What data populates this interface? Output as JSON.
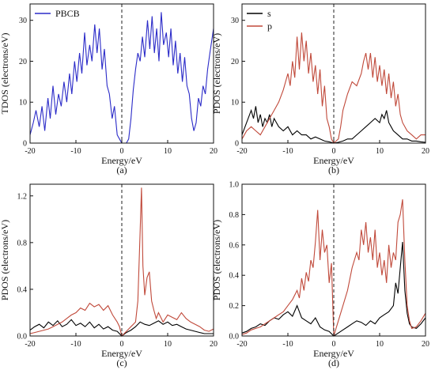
{
  "chart_data": [
    {
      "type": "line",
      "panel_label": "(a)",
      "xlabel": "Energy/eV",
      "ylabel": "TDOS (electrons/eV)",
      "xlim": [
        -20,
        20
      ],
      "ylim": [
        0,
        34
      ],
      "xticks": [
        -20,
        -10,
        0,
        10,
        20
      ],
      "yticks": [
        0,
        10,
        20,
        30
      ],
      "ytick_labels": [
        "0",
        "10",
        "20",
        "30"
      ],
      "legend": "top-left",
      "vline_x": 0,
      "series": [
        {
          "name": "PBCB",
          "color": "#2b2bc8",
          "x": [
            -20,
            -19.3,
            -18.7,
            -18,
            -17.4,
            -16.8,
            -16.1,
            -15.6,
            -15,
            -14.4,
            -13.8,
            -13.2,
            -12.6,
            -12,
            -11.4,
            -10.9,
            -10.3,
            -9.8,
            -9.2,
            -8.7,
            -8.1,
            -7.6,
            -7,
            -6.5,
            -5.9,
            -5.4,
            -4.9,
            -4.3,
            -3.8,
            -3.2,
            -2.7,
            -2.1,
            -1.6,
            -1,
            -0.5,
            0,
            0.5,
            1,
            1.5,
            2,
            2.5,
            3,
            3.5,
            4,
            4.5,
            5,
            5.6,
            6.1,
            6.6,
            7.1,
            7.6,
            8.1,
            8.6,
            9.1,
            9.7,
            10.2,
            10.7,
            11.2,
            11.7,
            12.2,
            12.7,
            13.2,
            13.7,
            14.2,
            14.7,
            15.2,
            15.7,
            16.2,
            16.7,
            17.2,
            17.7,
            18.2,
            18.7,
            19.2,
            19.6,
            20
          ],
          "y": [
            2,
            5,
            8,
            4,
            9,
            3,
            11,
            6,
            14,
            7,
            12,
            9,
            15,
            10,
            17,
            12,
            20,
            15,
            22,
            17,
            27,
            19,
            24,
            20,
            29,
            22,
            28,
            18,
            23,
            14,
            12,
            6,
            9,
            2,
            1,
            0,
            0,
            0,
            1,
            6,
            13,
            18,
            22,
            20,
            26,
            21,
            30,
            23,
            31,
            22,
            28,
            20,
            32,
            24,
            27,
            21,
            28,
            19,
            25,
            17,
            22,
            15,
            21,
            14,
            12,
            6,
            3,
            5,
            11,
            9,
            14,
            12,
            18,
            22,
            25,
            28
          ]
        }
      ]
    },
    {
      "type": "line",
      "panel_label": "(b)",
      "xlabel": "Energy/eV",
      "ylabel": "PDOS (electrons/eV)",
      "xlim": [
        -20,
        20
      ],
      "ylim": [
        0,
        34
      ],
      "xticks": [
        -20,
        -10,
        0,
        10,
        20
      ],
      "yticks": [
        0,
        10,
        20,
        30
      ],
      "ytick_labels": [
        "0",
        "10",
        "20",
        "30"
      ],
      "legend": "top-left",
      "vline_x": 0,
      "series": [
        {
          "name": "s",
          "color": "#000000",
          "x": [
            -20,
            -19,
            -18,
            -17.5,
            -17,
            -16.5,
            -16,
            -15.5,
            -15,
            -14.5,
            -14,
            -13.5,
            -13,
            -12.5,
            -12,
            -11,
            -10,
            -9,
            -8,
            -7,
            -6,
            -5,
            -4,
            -3,
            -2,
            -1,
            0,
            1,
            2,
            3,
            4,
            5,
            6,
            7,
            8,
            9,
            10,
            10.5,
            11,
            11.5,
            12,
            12.5,
            13,
            14,
            15,
            16,
            17,
            18,
            19,
            20
          ],
          "y": [
            2,
            5,
            8,
            6,
            9,
            5,
            7,
            4,
            6,
            5,
            7,
            4,
            6,
            5,
            4,
            3,
            4,
            2,
            3,
            2,
            2,
            1,
            1.5,
            1,
            0.5,
            0.3,
            0,
            0.2,
            0.5,
            1,
            1,
            2,
            3,
            4,
            5,
            6,
            5,
            7,
            6,
            8,
            5,
            4,
            3,
            2,
            1,
            1,
            0.5,
            0.5,
            0.3,
            0.2
          ]
        },
        {
          "name": "p",
          "color": "#c0493a",
          "x": [
            -20,
            -19,
            -18,
            -17,
            -16,
            -15,
            -14,
            -13,
            -12,
            -11,
            -10,
            -9.5,
            -9,
            -8.5,
            -8,
            -7.5,
            -7,
            -6.5,
            -6,
            -5.5,
            -5,
            -4.5,
            -4,
            -3.5,
            -3,
            -2.5,
            -2,
            -1.5,
            -1,
            -0.5,
            0,
            0.5,
            1,
            1.5,
            2,
            3,
            4,
            5,
            6,
            6.5,
            7,
            7.5,
            8,
            8.5,
            9,
            9.5,
            10,
            10.5,
            11,
            11.5,
            12,
            12.5,
            13,
            13.5,
            14,
            14.5,
            15,
            16,
            17,
            18,
            19,
            20
          ],
          "y": [
            1,
            3,
            4,
            3,
            2,
            4,
            6,
            8,
            10,
            13,
            17,
            14,
            20,
            16,
            26,
            18,
            27,
            20,
            25,
            17,
            22,
            15,
            19,
            12,
            18,
            9,
            14,
            6,
            4,
            1,
            0,
            0.5,
            1,
            4,
            8,
            12,
            15,
            14,
            17,
            20,
            22,
            18,
            22,
            16,
            21,
            15,
            19,
            14,
            18,
            12,
            17,
            11,
            15,
            9,
            12,
            7,
            5,
            3,
            2,
            1,
            2,
            2
          ]
        }
      ]
    },
    {
      "type": "line",
      "panel_label": "(c)",
      "xlabel": "Energy/eV",
      "ylabel": "PDOS (electrons/eV)",
      "xlim": [
        -20,
        20
      ],
      "ylim": [
        0,
        1.3
      ],
      "xticks": [
        -20,
        -10,
        0,
        10,
        20
      ],
      "yticks": [
        0,
        0.4,
        0.8,
        1.2
      ],
      "ytick_labels": [
        "0.0",
        "0.4",
        "0.8",
        "1.2"
      ],
      "vline_x": 0,
      "series": [
        {
          "name": "",
          "color": "#000000",
          "x": [
            -20,
            -19,
            -18,
            -17,
            -16,
            -15,
            -14,
            -13,
            -12,
            -11,
            -10,
            -9,
            -8,
            -7,
            -6,
            -5,
            -4,
            -3,
            -2,
            -1,
            0,
            1,
            2,
            3,
            4,
            5,
            6,
            7,
            8,
            9,
            10,
            11,
            12,
            13,
            14,
            15,
            16,
            17,
            18,
            19,
            20
          ],
          "y": [
            0.05,
            0.08,
            0.1,
            0.07,
            0.12,
            0.09,
            0.13,
            0.08,
            0.1,
            0.14,
            0.09,
            0.11,
            0.08,
            0.12,
            0.07,
            0.1,
            0.06,
            0.08,
            0.05,
            0.04,
            0,
            0.03,
            0.05,
            0.08,
            0.12,
            0.1,
            0.09,
            0.11,
            0.13,
            0.1,
            0.12,
            0.09,
            0.1,
            0.08,
            0.06,
            0.05,
            0.04,
            0.03,
            0.02,
            0.02,
            0.02
          ]
        },
        {
          "name": "",
          "color": "#c0493a",
          "x": [
            -20,
            -19,
            -18,
            -17,
            -16,
            -15,
            -14,
            -13,
            -12,
            -11,
            -10,
            -9,
            -8,
            -7,
            -6,
            -5,
            -4,
            -3,
            -2,
            -1,
            -0.5,
            0,
            0.5,
            1,
            1.5,
            2,
            2.5,
            3,
            3.5,
            4,
            4.3,
            4.6,
            5,
            5.5,
            6,
            6.5,
            7,
            7.5,
            8,
            9,
            10,
            11,
            12,
            13,
            14,
            15,
            16,
            17,
            18,
            19,
            20
          ],
          "y": [
            0.02,
            0.03,
            0.04,
            0.05,
            0.06,
            0.08,
            0.1,
            0.12,
            0.15,
            0.18,
            0.2,
            0.24,
            0.22,
            0.28,
            0.25,
            0.27,
            0.22,
            0.26,
            0.18,
            0.12,
            0.08,
            0,
            0.02,
            0.04,
            0.06,
            0.08,
            0.1,
            0.12,
            0.3,
            0.9,
            1.27,
            0.6,
            0.35,
            0.5,
            0.55,
            0.3,
            0.22,
            0.15,
            0.2,
            0.12,
            0.18,
            0.16,
            0.14,
            0.2,
            0.15,
            0.12,
            0.1,
            0.08,
            0.05,
            0.04,
            0.06
          ]
        }
      ]
    },
    {
      "type": "line",
      "panel_label": "(d)",
      "xlabel": "Energy/eV",
      "ylabel": "PDOS (electrons/eV)",
      "xlim": [
        -20,
        20
      ],
      "ylim": [
        0,
        1.0
      ],
      "xticks": [
        -20,
        -10,
        0,
        10,
        20
      ],
      "yticks": [
        0,
        0.2,
        0.4,
        0.6,
        0.8,
        1.0
      ],
      "ytick_labels": [
        "0.0",
        "0.2",
        "0.4",
        "0.6",
        "0.8",
        "1.0"
      ],
      "vline_x": 0,
      "series": [
        {
          "name": "",
          "color": "#000000",
          "x": [
            -20,
            -19,
            -18,
            -17,
            -16,
            -15,
            -14,
            -13,
            -12,
            -11,
            -10,
            -9,
            -8,
            -7,
            -6,
            -5,
            -4,
            -3,
            -2,
            -1,
            0,
            1,
            2,
            3,
            4,
            5,
            6,
            7,
            8,
            9,
            10,
            11,
            12,
            13,
            13.5,
            14,
            14.5,
            15,
            15.5,
            16,
            16.5,
            17,
            18,
            19,
            20
          ],
          "y": [
            0.02,
            0.03,
            0.05,
            0.06,
            0.08,
            0.07,
            0.1,
            0.12,
            0.11,
            0.14,
            0.16,
            0.13,
            0.2,
            0.12,
            0.1,
            0.08,
            0.12,
            0.06,
            0.04,
            0.03,
            0,
            0.02,
            0.04,
            0.06,
            0.08,
            0.1,
            0.09,
            0.07,
            0.1,
            0.08,
            0.12,
            0.14,
            0.16,
            0.2,
            0.35,
            0.28,
            0.45,
            0.62,
            0.3,
            0.15,
            0.08,
            0.06,
            0.05,
            0.08,
            0.12
          ]
        },
        {
          "name": "",
          "color": "#c0493a",
          "x": [
            -20,
            -19,
            -18,
            -17,
            -16,
            -15,
            -14,
            -13,
            -12,
            -11,
            -10,
            -9,
            -8,
            -7.5,
            -7,
            -6.5,
            -6,
            -5.5,
            -5,
            -4.5,
            -4,
            -3.5,
            -3,
            -2.5,
            -2,
            -1.5,
            -1,
            -0.5,
            0,
            0.5,
            1,
            2,
            3,
            4,
            5,
            5.5,
            6,
            6.5,
            7,
            7.5,
            8,
            8.5,
            9,
            9.5,
            10,
            10.5,
            11,
            11.5,
            12,
            12.5,
            13,
            13.5,
            14,
            14.5,
            15,
            15.5,
            16,
            16.5,
            17,
            18,
            19,
            20
          ],
          "y": [
            0.01,
            0.02,
            0.04,
            0.05,
            0.06,
            0.08,
            0.1,
            0.12,
            0.14,
            0.16,
            0.2,
            0.24,
            0.3,
            0.25,
            0.38,
            0.3,
            0.42,
            0.36,
            0.5,
            0.45,
            0.62,
            0.83,
            0.5,
            0.7,
            0.55,
            0.6,
            0.35,
            0.48,
            0,
            0.05,
            0.1,
            0.2,
            0.3,
            0.45,
            0.55,
            0.5,
            0.7,
            0.6,
            0.75,
            0.55,
            0.65,
            0.5,
            0.7,
            0.45,
            0.55,
            0.4,
            0.5,
            0.35,
            0.6,
            0.45,
            0.55,
            0.5,
            0.75,
            0.8,
            0.9,
            0.5,
            0.2,
            0.1,
            0.05,
            0.06,
            0.1,
            0.15
          ]
        }
      ]
    }
  ]
}
